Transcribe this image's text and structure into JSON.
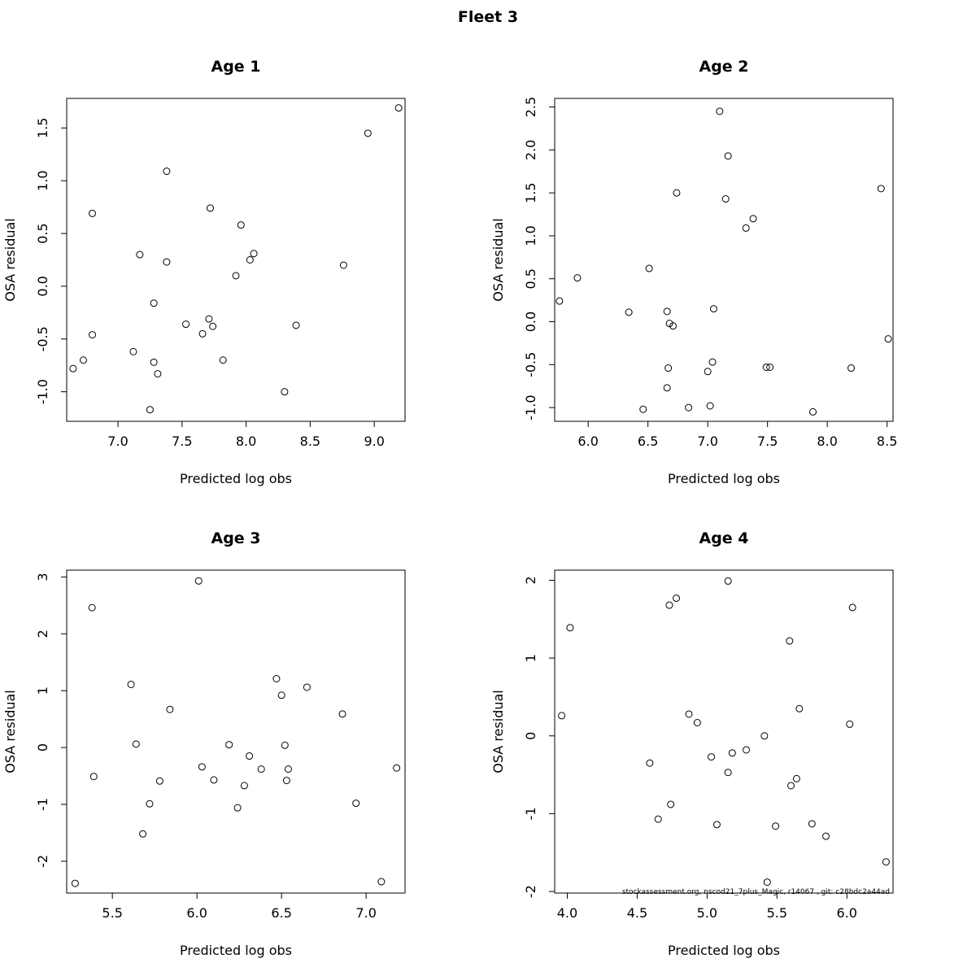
{
  "figure": {
    "title": "Fleet 3",
    "footer": "stockassessment.org, nscod21_7plus_Magic, r14067 , git: c28bdc2a44ad"
  },
  "chart_data": [
    {
      "type": "scatter",
      "title": "Age 1",
      "xlabel": "Predicted log obs",
      "ylabel": "OSA residual",
      "xlim": [
        6.6,
        9.24
      ],
      "ylim": [
        -1.28,
        1.78
      ],
      "xticks": [
        "7.0",
        "7.5",
        "8.0",
        "8.5",
        "9.0"
      ],
      "yticks": [
        "-1.0",
        "-0.5",
        "0.0",
        "0.5",
        "1.0",
        "1.5"
      ],
      "points": [
        [
          6.65,
          -0.78
        ],
        [
          6.73,
          -0.7
        ],
        [
          6.8,
          0.69
        ],
        [
          6.8,
          -0.46
        ],
        [
          7.12,
          -0.62
        ],
        [
          7.17,
          0.3
        ],
        [
          7.25,
          -1.17
        ],
        [
          7.28,
          -0.72
        ],
        [
          7.28,
          -0.16
        ],
        [
          7.31,
          -0.83
        ],
        [
          7.38,
          1.09
        ],
        [
          7.38,
          0.23
        ],
        [
          7.53,
          -0.36
        ],
        [
          7.66,
          -0.45
        ],
        [
          7.71,
          -0.31
        ],
        [
          7.72,
          0.74
        ],
        [
          7.74,
          -0.38
        ],
        [
          7.82,
          -0.7
        ],
        [
          7.92,
          0.1
        ],
        [
          7.96,
          0.58
        ],
        [
          8.03,
          0.25
        ],
        [
          8.06,
          0.31
        ],
        [
          8.3,
          -1.0
        ],
        [
          8.39,
          -0.37
        ],
        [
          8.76,
          0.2
        ],
        [
          8.95,
          1.45
        ],
        [
          9.19,
          1.69
        ]
      ]
    },
    {
      "type": "scatter",
      "title": "Age 2",
      "xlabel": "Predicted log obs",
      "ylabel": "OSA residual",
      "xlim": [
        5.72,
        8.55
      ],
      "ylim": [
        -1.16,
        2.6
      ],
      "xticks": [
        "6.0",
        "6.5",
        "7.0",
        "7.5",
        "8.0",
        "8.5"
      ],
      "yticks": [
        "-1.0",
        "-0.5",
        "0.0",
        "0.5",
        "1.0",
        "1.5",
        "2.0",
        "2.5"
      ],
      "points": [
        [
          5.76,
          0.24
        ],
        [
          5.91,
          0.51
        ],
        [
          6.34,
          0.11
        ],
        [
          6.46,
          -1.02
        ],
        [
          6.51,
          0.62
        ],
        [
          6.66,
          0.12
        ],
        [
          6.66,
          -0.77
        ],
        [
          6.67,
          -0.54
        ],
        [
          6.68,
          -0.02
        ],
        [
          6.71,
          -0.05
        ],
        [
          6.74,
          1.5
        ],
        [
          6.84,
          -1.0
        ],
        [
          7.0,
          -0.58
        ],
        [
          7.02,
          -0.98
        ],
        [
          7.04,
          -0.47
        ],
        [
          7.05,
          0.15
        ],
        [
          7.1,
          2.45
        ],
        [
          7.15,
          1.43
        ],
        [
          7.17,
          1.93
        ],
        [
          7.32,
          1.09
        ],
        [
          7.38,
          1.2
        ],
        [
          7.49,
          -0.53
        ],
        [
          7.52,
          -0.53
        ],
        [
          7.88,
          -1.05
        ],
        [
          8.2,
          -0.54
        ],
        [
          8.45,
          1.55
        ],
        [
          8.51,
          -0.2
        ]
      ]
    },
    {
      "type": "scatter",
      "title": "Age 3",
      "xlabel": "Predicted log obs",
      "ylabel": "OSA residual",
      "xlim": [
        5.23,
        7.23
      ],
      "ylim": [
        -2.56,
        3.12
      ],
      "xticks": [
        "5.5",
        "6.0",
        "6.5",
        "7.0"
      ],
      "yticks": [
        "-2",
        "-1",
        "0",
        "1",
        "2",
        "3"
      ],
      "points": [
        [
          5.28,
          -2.39
        ],
        [
          5.38,
          2.46
        ],
        [
          5.39,
          -0.51
        ],
        [
          5.61,
          1.11
        ],
        [
          5.64,
          0.06
        ],
        [
          5.68,
          -1.52
        ],
        [
          5.72,
          -0.99
        ],
        [
          5.78,
          -0.59
        ],
        [
          5.84,
          0.67
        ],
        [
          6.01,
          2.93
        ],
        [
          6.03,
          -0.34
        ],
        [
          6.1,
          -0.57
        ],
        [
          6.19,
          0.05
        ],
        [
          6.24,
          -1.06
        ],
        [
          6.28,
          -0.67
        ],
        [
          6.31,
          -0.15
        ],
        [
          6.38,
          -0.38
        ],
        [
          6.47,
          1.21
        ],
        [
          6.5,
          0.92
        ],
        [
          6.52,
          0.04
        ],
        [
          6.53,
          -0.58
        ],
        [
          6.54,
          -0.38
        ],
        [
          6.65,
          1.06
        ],
        [
          6.86,
          0.59
        ],
        [
          6.94,
          -0.98
        ],
        [
          7.09,
          -2.36
        ],
        [
          7.18,
          -0.36
        ]
      ]
    },
    {
      "type": "scatter",
      "title": "Age 4",
      "xlabel": "Predicted log obs",
      "ylabel": "OSA residual",
      "xlim": [
        3.91,
        6.33
      ],
      "ylim": [
        -2.02,
        2.13
      ],
      "xticks": [
        "4.0",
        "4.5",
        "5.0",
        "5.5",
        "6.0"
      ],
      "yticks": [
        "-2",
        "-1",
        "0",
        "1",
        "2"
      ],
      "points": [
        [
          3.96,
          0.26
        ],
        [
          4.02,
          1.39
        ],
        [
          4.59,
          -0.35
        ],
        [
          4.65,
          -1.07
        ],
        [
          4.73,
          1.68
        ],
        [
          4.74,
          -0.88
        ],
        [
          4.78,
          1.77
        ],
        [
          4.87,
          0.28
        ],
        [
          4.93,
          0.17
        ],
        [
          5.03,
          -0.27
        ],
        [
          5.07,
          -1.14
        ],
        [
          5.15,
          1.99
        ],
        [
          5.15,
          -0.47
        ],
        [
          5.18,
          -0.22
        ],
        [
          5.28,
          -0.18
        ],
        [
          5.41,
          0.0
        ],
        [
          5.43,
          -1.88
        ],
        [
          5.49,
          -1.16
        ],
        [
          5.59,
          1.22
        ],
        [
          5.6,
          -0.64
        ],
        [
          5.64,
          -0.55
        ],
        [
          5.66,
          0.35
        ],
        [
          5.75,
          -1.13
        ],
        [
          5.85,
          -1.29
        ],
        [
          6.02,
          0.15
        ],
        [
          6.04,
          1.65
        ],
        [
          6.28,
          -1.62
        ]
      ]
    }
  ]
}
